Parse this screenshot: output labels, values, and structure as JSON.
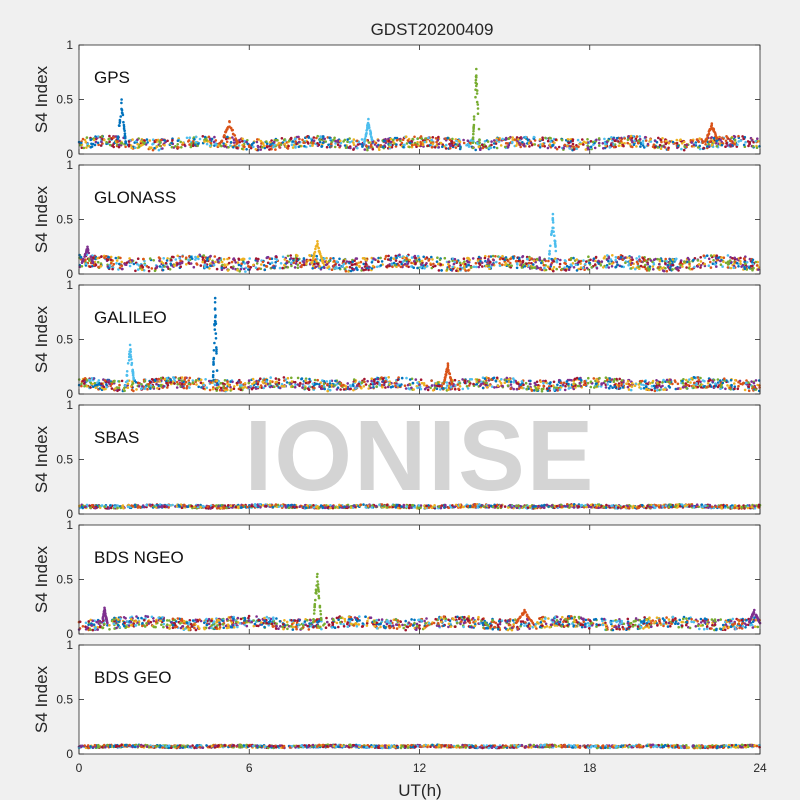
{
  "watermark": "IONISE",
  "chart_data": {
    "type": "scatter",
    "title": "GDST20200409",
    "xlabel": "UT(h)",
    "ylabel": "S4 Index",
    "xlim": [
      0,
      24
    ],
    "ylim": [
      0,
      1
    ],
    "xticks": [
      0,
      6,
      12,
      18,
      24
    ],
    "yticks": [
      0,
      0.5,
      1
    ],
    "colors": [
      "#0072BD",
      "#D95319",
      "#EDB120",
      "#7E2F8E",
      "#77AC30",
      "#4DBEEE",
      "#A2142F"
    ],
    "panels": [
      {
        "label": "GPS",
        "baseline": 0.1,
        "noise": 0.05,
        "bumps": [
          {
            "x": 1.5,
            "y": 0.5,
            "w": 0.15,
            "color": "#0072BD"
          },
          {
            "x": 5.3,
            "y": 0.3,
            "w": 0.3,
            "color": "#D95319"
          },
          {
            "x": 10.2,
            "y": 0.32,
            "w": 0.15,
            "color": "#4DBEEE"
          },
          {
            "x": 14.0,
            "y": 0.78,
            "w": 0.12,
            "color": "#77AC30"
          },
          {
            "x": 22.3,
            "y": 0.28,
            "w": 0.25,
            "color": "#D95319"
          }
        ]
      },
      {
        "label": "GLONASS",
        "baseline": 0.1,
        "noise": 0.06,
        "bumps": [
          {
            "x": 0.3,
            "y": 0.25,
            "w": 0.2,
            "color": "#7E2F8E"
          },
          {
            "x": 8.4,
            "y": 0.3,
            "w": 0.2,
            "color": "#EDB120"
          },
          {
            "x": 16.7,
            "y": 0.55,
            "w": 0.15,
            "color": "#4DBEEE"
          }
        ]
      },
      {
        "label": "GALILEO",
        "baseline": 0.09,
        "noise": 0.05,
        "bumps": [
          {
            "x": 1.8,
            "y": 0.45,
            "w": 0.15,
            "color": "#4DBEEE"
          },
          {
            "x": 4.8,
            "y": 0.88,
            "w": 0.08,
            "color": "#0072BD"
          },
          {
            "x": 13.0,
            "y": 0.28,
            "w": 0.15,
            "color": "#D95319"
          }
        ]
      },
      {
        "label": "SBAS",
        "baseline": 0.07,
        "noise": 0.015,
        "bumps": []
      },
      {
        "label": "BDS NGEO",
        "baseline": 0.1,
        "noise": 0.05,
        "bumps": [
          {
            "x": 0.9,
            "y": 0.24,
            "w": 0.1,
            "color": "#7E2F8E"
          },
          {
            "x": 8.4,
            "y": 0.55,
            "w": 0.15,
            "color": "#77AC30"
          },
          {
            "x": 15.7,
            "y": 0.22,
            "w": 0.3,
            "color": "#D95319"
          },
          {
            "x": 23.8,
            "y": 0.22,
            "w": 0.2,
            "color": "#7E2F8E"
          }
        ]
      },
      {
        "label": "BDS GEO",
        "baseline": 0.07,
        "noise": 0.012,
        "bumps": []
      }
    ]
  }
}
